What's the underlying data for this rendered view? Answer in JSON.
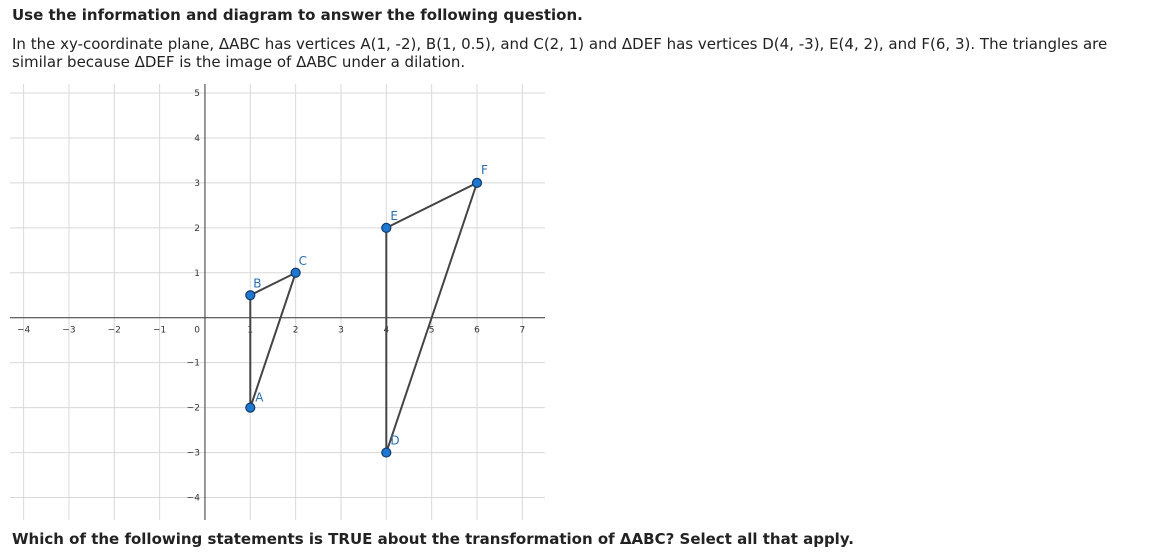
{
  "instruction": "Use the information and diagram to answer the following question.",
  "question": "In the xy-coordinate plane, ΔABC has vertices A(1, -2), B(1, 0.5), and C(2, 1) and ΔDEF has vertices D(4, -3), E(4, 2), and F(6, 3). The triangles are similar because ΔDEF is the image of ΔABC under a dilation.",
  "graph": {
    "xlim": [
      -4.3,
      7.5
    ],
    "ylim": [
      -4.5,
      5.2
    ],
    "xticks": [
      {
        "value": -4,
        "label": "−4"
      },
      {
        "value": -3,
        "label": "−3"
      },
      {
        "value": -2,
        "label": "−2"
      },
      {
        "value": -1,
        "label": "−1"
      },
      1,
      2,
      3,
      4,
      5,
      6,
      7
    ],
    "yticks": [
      {
        "value": -4,
        "label": "−4"
      },
      {
        "value": -3,
        "label": "−3"
      },
      {
        "value": -2,
        "label": "−2"
      },
      {
        "value": -1,
        "label": "−1"
      },
      1,
      2,
      3,
      4,
      5
    ],
    "origin_label": "0",
    "triangles": [
      {
        "vertices": [
          {
            "label": "A",
            "x": 1,
            "y": -2
          },
          {
            "label": "B",
            "x": 1,
            "y": 0.5
          },
          {
            "label": "C",
            "x": 2,
            "y": 1
          }
        ]
      },
      {
        "vertices": [
          {
            "label": "D",
            "x": 4,
            "y": -3
          },
          {
            "label": "E",
            "x": 4,
            "y": 2
          },
          {
            "label": "F",
            "x": 6,
            "y": 3
          }
        ]
      }
    ]
  },
  "prompt": "Which of the following statements is TRUE about the transformation of ΔABC? Select all that apply."
}
